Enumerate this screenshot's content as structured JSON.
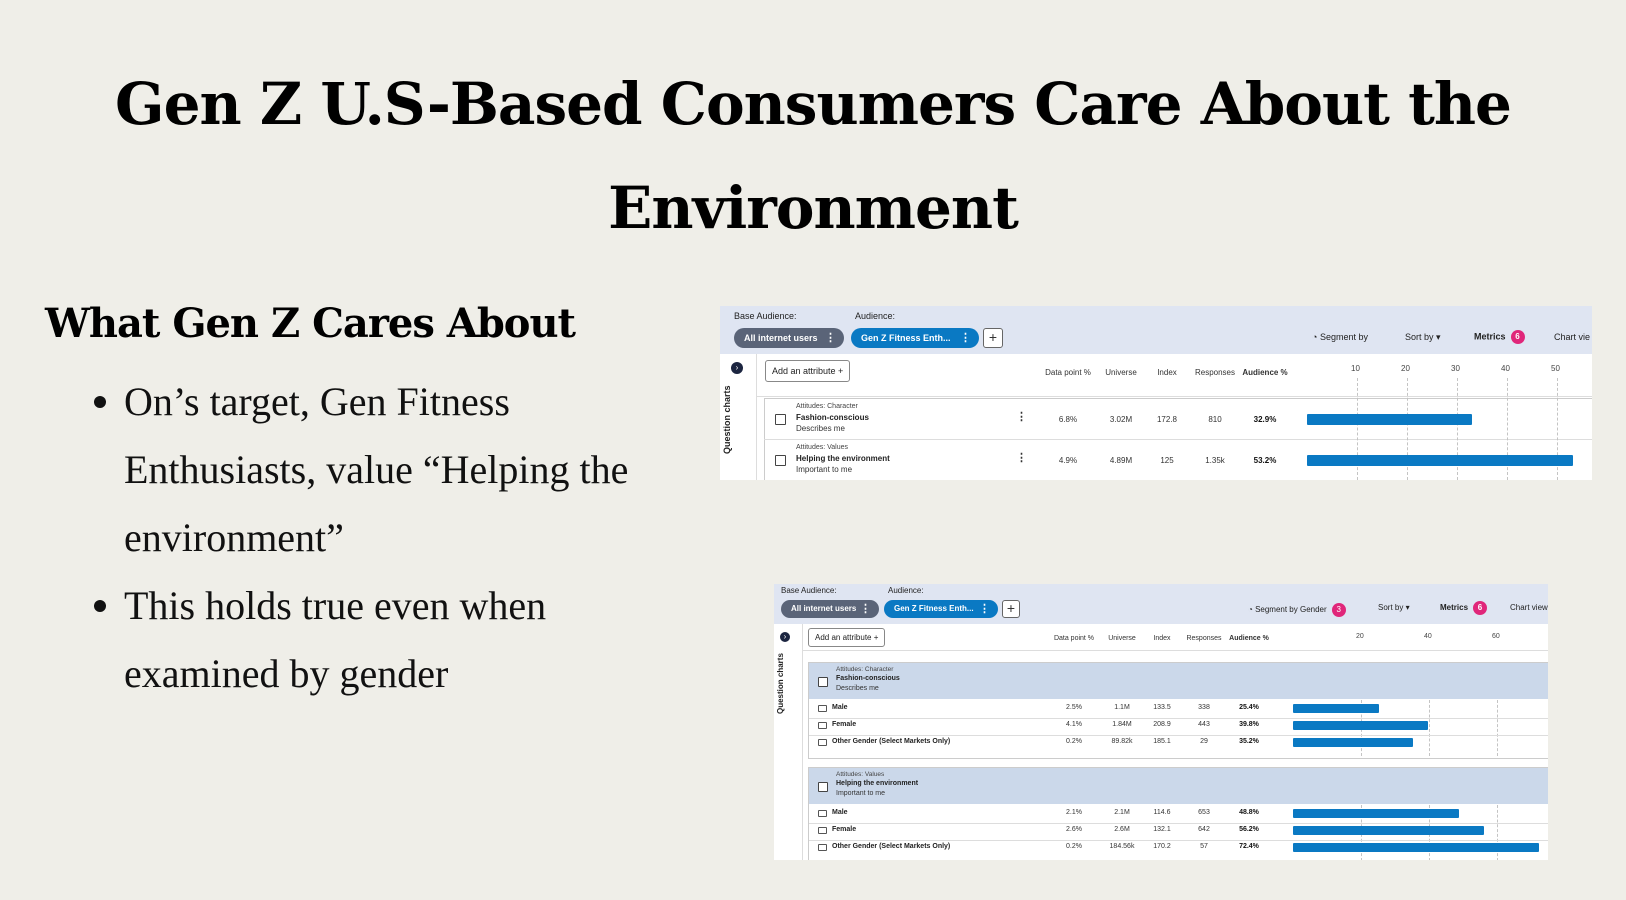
{
  "slide": {
    "title": "Gen Z U.S-Based Consumers Care About the Environment",
    "subtitle": "What Gen Z Cares About",
    "bullets": [
      "On’s target, Gen Fitness Enthusiasts, value “Helping the environment”",
      "This holds true even when examined by gender"
    ]
  },
  "colors": {
    "bar": "#0a79c3",
    "badge": "#e0267a",
    "pill_grey": "#5a6478",
    "pill_blue": "#0a79c3",
    "topbar": "#dfe5f2"
  },
  "shot1": {
    "base_audience_label": "Base Audience:",
    "audience_label": "Audience:",
    "base_pill": "All internet users",
    "audience_pill": "Gen Z Fitness Enth...",
    "plus": "+",
    "segment_by": "Segment by",
    "sort_by": "Sort by",
    "metrics": "Metrics",
    "metrics_count": "6",
    "chart_view": "Chart vie",
    "side_label": "Question charts",
    "add_attribute": "Add an attribute",
    "columns": [
      "Data point %",
      "Universe",
      "Index",
      "Responses",
      "Audience %"
    ],
    "ticks": [
      "10",
      "20",
      "30",
      "40",
      "50"
    ],
    "rows": [
      {
        "category": "Attitudes: Character",
        "name": "Fashion-conscious",
        "sub": "Describes me",
        "data_point": "6.8%",
        "universe": "3.02M",
        "index": "172.8",
        "responses": "810",
        "audience": "32.9%",
        "value": 32.9
      },
      {
        "category": "Attitudes: Values",
        "name": "Helping the environment",
        "sub": "Important to me",
        "data_point": "4.9%",
        "universe": "4.89M",
        "index": "125",
        "responses": "1.35k",
        "audience": "53.2%",
        "value": 53.2
      }
    ]
  },
  "shot2": {
    "base_audience_label": "Base Audience:",
    "audience_label": "Audience:",
    "base_pill": "All internet users",
    "audience_pill": "Gen Z Fitness Enth...",
    "plus": "+",
    "segment_by": "Segment by Gender",
    "segment_count": "3",
    "sort_by": "Sort by",
    "metrics": "Metrics",
    "metrics_count": "6",
    "chart_view": "Chart view",
    "side_label": "Question charts",
    "add_attribute": "Add an attribute",
    "columns": [
      "Data point %",
      "Universe",
      "Index",
      "Responses",
      "Audience %"
    ],
    "ticks": [
      "20",
      "40",
      "60"
    ],
    "groups": [
      {
        "category": "Attitudes: Character",
        "name": "Fashion-conscious",
        "sub": "Describes me",
        "rows": [
          {
            "label": "Male",
            "data_point": "2.5%",
            "universe": "1.1M",
            "index": "133.5",
            "responses": "338",
            "audience": "25.4%",
            "value": 25.4
          },
          {
            "label": "Female",
            "data_point": "4.1%",
            "universe": "1.84M",
            "index": "208.9",
            "responses": "443",
            "audience": "39.8%",
            "value": 39.8
          },
          {
            "label": "Other Gender (Select Markets Only)",
            "data_point": "0.2%",
            "universe": "89.82k",
            "index": "185.1",
            "responses": "29",
            "audience": "35.2%",
            "value": 35.2
          }
        ]
      },
      {
        "category": "Attitudes: Values",
        "name": "Helping the environment",
        "sub": "Important to me",
        "rows": [
          {
            "label": "Male",
            "data_point": "2.1%",
            "universe": "2.1M",
            "index": "114.6",
            "responses": "653",
            "audience": "48.8%",
            "value": 48.8
          },
          {
            "label": "Female",
            "data_point": "2.6%",
            "universe": "2.6M",
            "index": "132.1",
            "responses": "642",
            "audience": "56.2%",
            "value": 56.2
          },
          {
            "label": "Other Gender (Select Markets Only)",
            "data_point": "0.2%",
            "universe": "184.56k",
            "index": "170.2",
            "responses": "57",
            "audience": "72.4%",
            "value": 72.4
          }
        ]
      }
    ]
  }
}
